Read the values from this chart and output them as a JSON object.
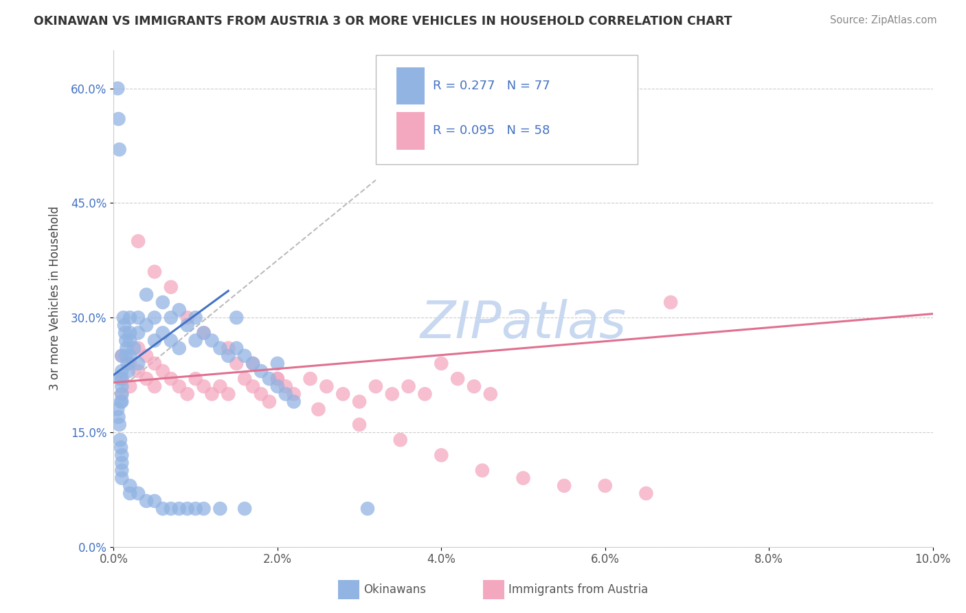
{
  "title": "OKINAWAN VS IMMIGRANTS FROM AUSTRIA 3 OR MORE VEHICLES IN HOUSEHOLD CORRELATION CHART",
  "source": "Source: ZipAtlas.com",
  "ylabel": "3 or more Vehicles in Household",
  "xlim": [
    0.0,
    0.1
  ],
  "ylim": [
    0.0,
    0.65
  ],
  "xticks": [
    0.0,
    0.02,
    0.04,
    0.06,
    0.08,
    0.1
  ],
  "xtick_labels": [
    "0.0%",
    "2.0%",
    "4.0%",
    "6.0%",
    "8.0%",
    "10.0%"
  ],
  "yticks": [
    0.0,
    0.15,
    0.3,
    0.45,
    0.6
  ],
  "ytick_labels": [
    "0.0%",
    "15.0%",
    "30.0%",
    "45.0%",
    "60.0%"
  ],
  "r_okinawan": 0.277,
  "n_okinawan": 77,
  "r_austrian": 0.095,
  "n_austrian": 58,
  "color_okinawan": "#92b4e3",
  "color_austrian": "#f4a8c0",
  "line_color_okinawan": "#4472c4",
  "line_color_austrian": "#e07090",
  "legend_label_okinawan": "Okinawans",
  "legend_label_austrian": "Immigrants from Austria",
  "watermark": "ZIPatlas",
  "watermark_color": "#c8d8f0",
  "ok_x": [
    0.0005,
    0.0006,
    0.0007,
    0.0008,
    0.0009,
    0.001,
    0.001,
    0.001,
    0.001,
    0.001,
    0.001,
    0.0012,
    0.0013,
    0.0014,
    0.0015,
    0.0015,
    0.0016,
    0.0017,
    0.0018,
    0.002,
    0.002,
    0.002,
    0.002,
    0.0025,
    0.003,
    0.003,
    0.003,
    0.004,
    0.004,
    0.005,
    0.005,
    0.006,
    0.006,
    0.007,
    0.007,
    0.008,
    0.008,
    0.009,
    0.01,
    0.01,
    0.011,
    0.012,
    0.013,
    0.014,
    0.015,
    0.015,
    0.016,
    0.017,
    0.018,
    0.019,
    0.02,
    0.02,
    0.021,
    0.022,
    0.0005,
    0.0006,
    0.0007,
    0.0008,
    0.0009,
    0.001,
    0.001,
    0.001,
    0.001,
    0.002,
    0.002,
    0.003,
    0.004,
    0.005,
    0.006,
    0.007,
    0.008,
    0.009,
    0.01,
    0.011,
    0.013,
    0.016,
    0.031
  ],
  "ok_y": [
    0.6,
    0.56,
    0.52,
    0.22,
    0.19,
    0.25,
    0.23,
    0.22,
    0.21,
    0.2,
    0.19,
    0.3,
    0.29,
    0.28,
    0.27,
    0.25,
    0.26,
    0.24,
    0.23,
    0.3,
    0.28,
    0.27,
    0.25,
    0.26,
    0.3,
    0.28,
    0.24,
    0.33,
    0.29,
    0.3,
    0.27,
    0.32,
    0.28,
    0.3,
    0.27,
    0.31,
    0.26,
    0.29,
    0.3,
    0.27,
    0.28,
    0.27,
    0.26,
    0.25,
    0.3,
    0.26,
    0.25,
    0.24,
    0.23,
    0.22,
    0.24,
    0.21,
    0.2,
    0.19,
    0.18,
    0.17,
    0.16,
    0.14,
    0.13,
    0.12,
    0.11,
    0.1,
    0.09,
    0.08,
    0.07,
    0.07,
    0.06,
    0.06,
    0.05,
    0.05,
    0.05,
    0.05,
    0.05,
    0.05,
    0.05,
    0.05,
    0.05
  ],
  "au_x": [
    0.001,
    0.001,
    0.001,
    0.002,
    0.002,
    0.003,
    0.003,
    0.004,
    0.004,
    0.005,
    0.005,
    0.006,
    0.007,
    0.008,
    0.009,
    0.01,
    0.011,
    0.012,
    0.013,
    0.014,
    0.015,
    0.016,
    0.017,
    0.018,
    0.019,
    0.02,
    0.021,
    0.022,
    0.024,
    0.026,
    0.028,
    0.03,
    0.032,
    0.034,
    0.036,
    0.038,
    0.04,
    0.042,
    0.044,
    0.046,
    0.003,
    0.005,
    0.007,
    0.009,
    0.011,
    0.014,
    0.017,
    0.02,
    0.025,
    0.03,
    0.035,
    0.04,
    0.045,
    0.05,
    0.055,
    0.06,
    0.065,
    0.068
  ],
  "au_y": [
    0.25,
    0.22,
    0.2,
    0.24,
    0.21,
    0.26,
    0.23,
    0.25,
    0.22,
    0.24,
    0.21,
    0.23,
    0.22,
    0.21,
    0.2,
    0.22,
    0.21,
    0.2,
    0.21,
    0.2,
    0.24,
    0.22,
    0.21,
    0.2,
    0.19,
    0.22,
    0.21,
    0.2,
    0.22,
    0.21,
    0.2,
    0.19,
    0.21,
    0.2,
    0.21,
    0.2,
    0.24,
    0.22,
    0.21,
    0.2,
    0.4,
    0.36,
    0.34,
    0.3,
    0.28,
    0.26,
    0.24,
    0.22,
    0.18,
    0.16,
    0.14,
    0.12,
    0.1,
    0.09,
    0.08,
    0.08,
    0.07,
    0.32
  ],
  "ok_line_x": [
    0.0,
    0.014
  ],
  "ok_line_y": [
    0.225,
    0.335
  ],
  "au_line_x": [
    0.0,
    0.1
  ],
  "au_line_y": [
    0.215,
    0.305
  ],
  "dash_line_x": [
    0.0,
    0.032
  ],
  "dash_line_y": [
    0.2,
    0.48
  ]
}
